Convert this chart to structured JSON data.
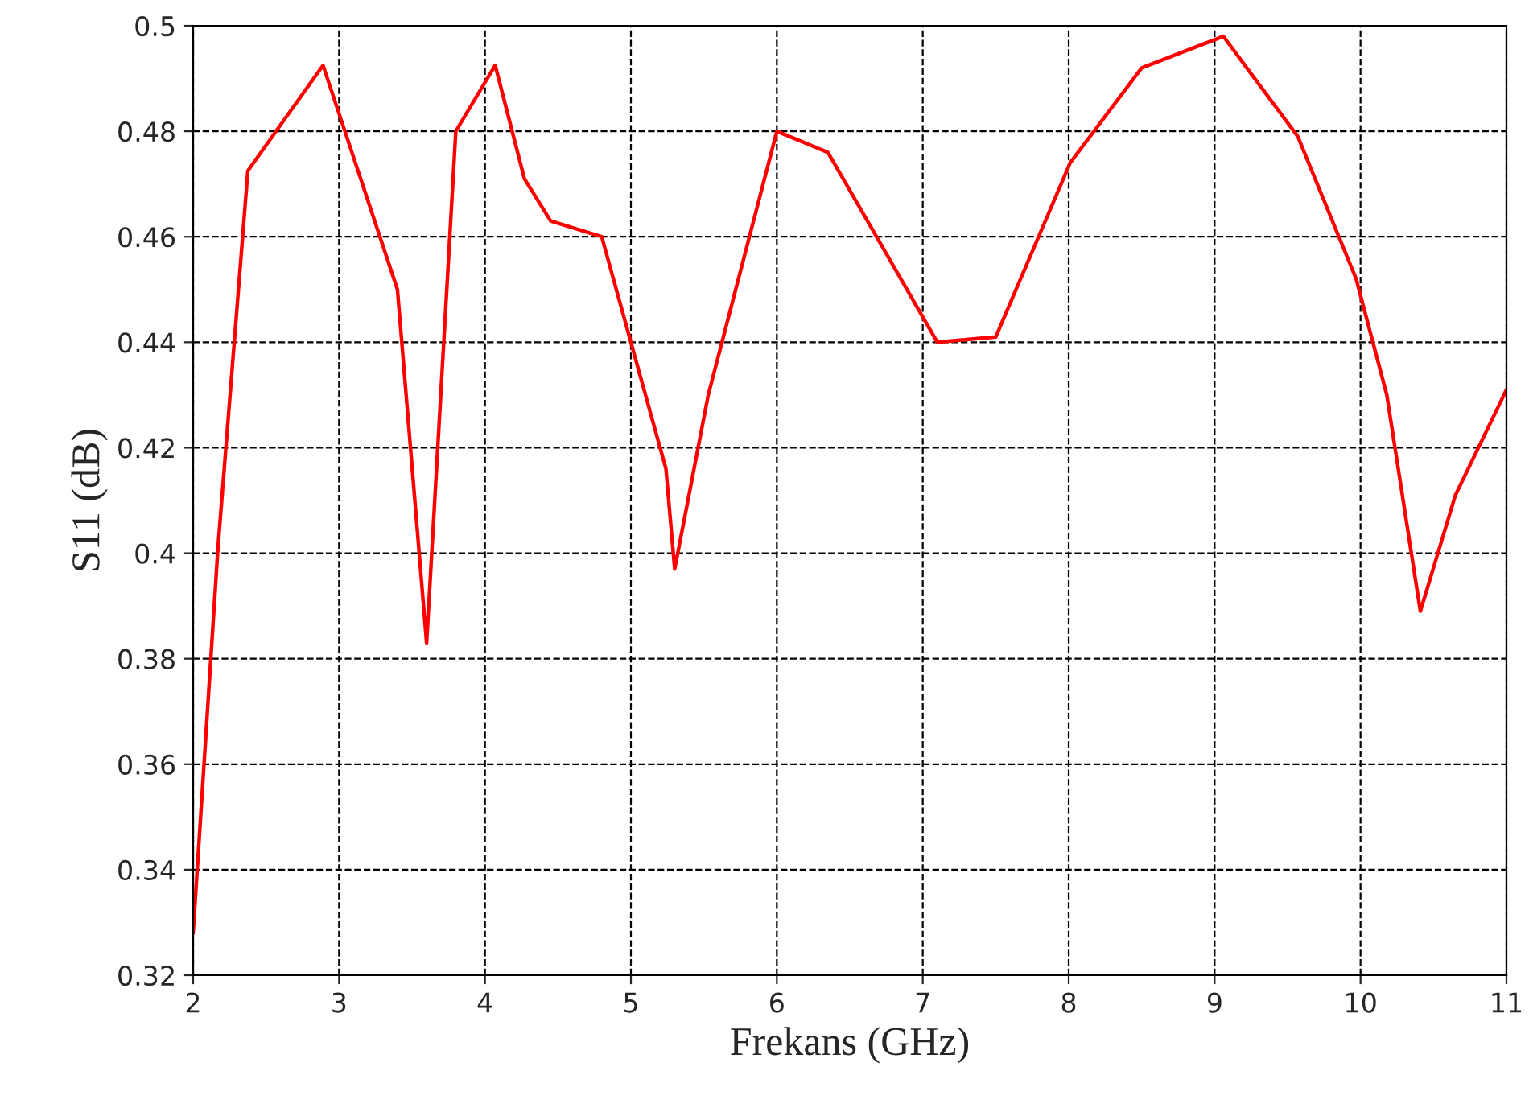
{
  "chart_data": {
    "type": "line",
    "xlabel": "Frekans (GHz)",
    "ylabel": "S11 (dB)",
    "x": [
      2.0,
      2.17,
      2.375,
      2.89,
      3.4,
      3.6,
      3.8,
      4.07,
      4.27,
      4.45,
      4.8,
      5.24,
      5.3,
      5.53,
      6.0,
      6.35,
      7.1,
      7.5,
      8.01,
      8.5,
      9.06,
      9.57,
      9.97,
      10.18,
      10.41,
      10.65,
      11.0
    ],
    "series": [
      {
        "color": "#ff0000",
        "values": [
          0.328,
          0.401,
          0.4725,
          0.4925,
          0.45,
          0.383,
          0.48,
          0.4925,
          0.471,
          0.463,
          0.46,
          0.416,
          0.397,
          0.43,
          0.48,
          0.476,
          0.44,
          0.441,
          0.474,
          0.492,
          0.498,
          0.479,
          0.452,
          0.43,
          0.389,
          0.411,
          0.431
        ]
      }
    ],
    "xlim": [
      2,
      11
    ],
    "xticks": [
      2,
      3,
      4,
      5,
      6,
      7,
      8,
      9,
      10,
      11
    ],
    "ylim": [
      0.32,
      0.5
    ],
    "yticks": [
      0.32,
      0.34,
      0.36,
      0.38,
      0.4,
      0.42,
      0.44,
      0.46,
      0.48,
      0.5
    ],
    "grid": true,
    "line_style": "solid"
  }
}
